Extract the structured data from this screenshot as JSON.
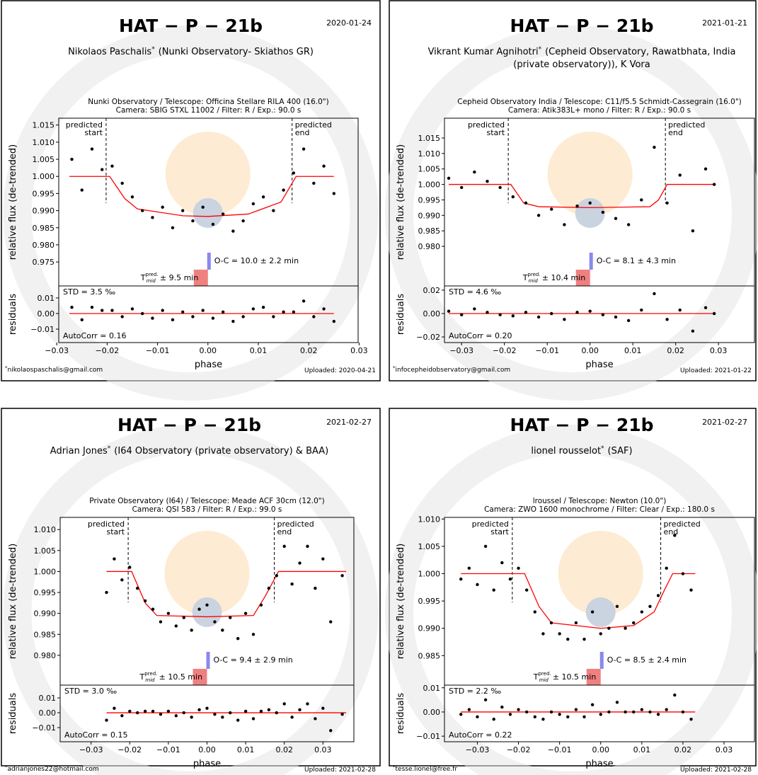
{
  "chart_data": [
    {
      "type": "scatter",
      "title": "HAT − P − 21b",
      "date": "2020-01-24",
      "observer": "Nikolaos Paschalis",
      "footnote_mark": "*",
      "affiliation": [
        "(Nunki Observatory- Skiathos GR)"
      ],
      "setup": [
        "Nunki Observatory / Telescope: Officina Stellare RILA 400 (16.0\")",
        "Camera: SBIG STXL 11002 / Filter: R / Exp.: 90.0 s"
      ],
      "ylabel": "relative flux (de-trended)",
      "residual_ylabel": "residuals",
      "xlabel": "phase",
      "x": [
        -0.027,
        -0.025,
        -0.023,
        -0.021,
        -0.019,
        -0.017,
        -0.015,
        -0.013,
        -0.011,
        -0.009,
        -0.007,
        -0.005,
        -0.003,
        -0.001,
        0.001,
        0.003,
        0.005,
        0.007,
        0.009,
        0.011,
        0.013,
        0.015,
        0.017,
        0.019,
        0.021,
        0.023,
        0.025
      ],
      "values": [
        1.005,
        0.996,
        1.008,
        1.002,
        1.003,
        0.998,
        0.994,
        0.99,
        0.988,
        0.991,
        0.985,
        0.99,
        0.987,
        0.991,
        0.986,
        0.989,
        0.984,
        0.987,
        0.992,
        0.994,
        0.99,
        0.996,
        1.001,
        1.008,
        0.998,
        1.003,
        0.995
      ],
      "residuals": [
        0.004,
        -0.004,
        0.004,
        0.002,
        0.002,
        -0.002,
        0.003,
        0.0,
        -0.003,
        0.002,
        -0.004,
        0.001,
        -0.002,
        0.002,
        -0.003,
        0.001,
        -0.005,
        -0.002,
        0.003,
        0.004,
        -0.002,
        0.001,
        0.001,
        0.008,
        -0.002,
        0.003,
        -0.005
      ],
      "color": "#000000",
      "model_x": [
        -0.0275,
        -0.0195,
        -0.0165,
        -0.014,
        -0.005,
        0.0,
        0.008,
        0.0145,
        0.0175,
        0.025
      ],
      "model_y": [
        1.0,
        1.0,
        0.9935,
        0.9905,
        0.9885,
        0.9883,
        0.989,
        0.9925,
        1.0,
        1.0
      ],
      "model_color": "#ff0000",
      "predicted_start": -0.0202,
      "predicted_end": 0.0167,
      "predicted_start_label": [
        "predicted",
        "start"
      ],
      "predicted_end_label": [
        "predicted",
        "end"
      ],
      "oc_label": "O-C = 10.0 ± 2.2 min",
      "tmid_label": [
        "T",
        "pred.",
        "mid",
        "± 9.5 min"
      ],
      "std_label": "STD = 3.5 ‰",
      "autocorr_label": "AutoCorr = 0.16",
      "email": "nikolaospaschalis@gmail.com",
      "uploaded": "Uploaded: 2020-04-21",
      "xlim": [
        -0.0296,
        0.0298
      ],
      "ylim": [
        0.968,
        1.017
      ],
      "residual_ylim": [
        -0.0186,
        0.0177
      ],
      "xticks": [
        {
          "value": -0.03,
          "label": "−0.03"
        },
        {
          "value": -0.02,
          "label": "−0.02"
        },
        {
          "value": -0.01,
          "label": "−0.01"
        },
        {
          "value": 0,
          "label": "0.00"
        },
        0.01,
        0.02,
        0.03
      ],
      "yticks": [
        0.975,
        {
          "value": 0.98,
          "label": "0.980"
        },
        0.985,
        {
          "value": 0.99,
          "label": "0.990"
        },
        0.995,
        {
          "value": 1,
          "label": "1.000"
        },
        1.005,
        {
          "value": 1.01,
          "label": "1.010"
        },
        1.015
      ],
      "residual_yticks": [
        {
          "value": -0.01,
          "label": "−0.01"
        },
        {
          "value": 0,
          "label": "0.00"
        },
        0.01
      ]
    },
    {
      "type": "scatter",
      "title": "HAT − P − 21b",
      "date": "2021-01-21",
      "observer": "Vikrant Kumar Agnihotri",
      "footnote_mark": "*",
      "affiliation": [
        "(Cepheid Observatory, Rawatbhata, India",
        "(private observatory)), K Vora"
      ],
      "setup": [
        "Cepheid Observatory India / Telescope: C11/f5.5 Schmidt-Cassegrain (16.0\")",
        "Camera: Atik383L+ mono / Filter: R / Exp.: 90.0 s"
      ],
      "ylabel": "relative flux (de-trended)",
      "residual_ylabel": "residuals",
      "xlabel": "phase",
      "x": [
        -0.033,
        -0.03,
        -0.027,
        -0.024,
        -0.021,
        -0.018,
        -0.015,
        -0.012,
        -0.009,
        -0.006,
        -0.003,
        0.0,
        0.003,
        0.006,
        0.009,
        0.012,
        0.015,
        0.018,
        0.021,
        0.024,
        0.027,
        0.029
      ],
      "values": [
        1.002,
        0.999,
        1.004,
        1.001,
        0.999,
        0.996,
        0.994,
        0.99,
        0.992,
        0.987,
        0.993,
        0.994,
        0.991,
        0.989,
        0.987,
        0.995,
        1.012,
        0.994,
        1.003,
        0.985,
        1.005,
        1.0
      ],
      "residuals": [
        0.002,
        -0.001,
        0.004,
        0.001,
        -0.001,
        -0.002,
        0.001,
        -0.003,
        0.0,
        -0.005,
        0.001,
        0.002,
        -0.001,
        -0.003,
        -0.006,
        0.003,
        0.017,
        -0.005,
        0.003,
        -0.015,
        0.005,
        0.0
      ],
      "color": "#000000",
      "model_x": [
        -0.033,
        -0.0185,
        -0.0155,
        -0.012,
        0.0,
        0.014,
        0.016,
        0.018,
        0.029
      ],
      "model_y": [
        1.0,
        1.0,
        0.994,
        0.9928,
        0.9925,
        0.9928,
        0.995,
        1.0,
        1.0
      ],
      "model_color": "#ff0000",
      "predicted_start": -0.0191,
      "predicted_end": 0.0176,
      "predicted_start_label": [
        "predicted",
        "start"
      ],
      "predicted_end_label": [
        "predicted",
        "end"
      ],
      "oc_label": "O-C = 8.1 ± 4.3 min",
      "tmid_label": [
        "T",
        "pred.",
        "mid",
        "± 10.4 min"
      ],
      "std_label": "STD = 4.6 ‰",
      "autocorr_label": "AutoCorr = 0.20",
      "email": "infocepheidobservatory@gmail.com",
      "uploaded": "Uploaded: 2021-01-22",
      "xlim": [
        -0.034,
        0.0384
      ],
      "ylim": [
        0.9672,
        1.0214
      ],
      "residual_ylim": [
        -0.0248,
        0.0236
      ],
      "xticks": [
        {
          "value": -0.03,
          "label": "−0.03"
        },
        {
          "value": -0.02,
          "label": "−0.02"
        },
        {
          "value": -0.01,
          "label": "−0.01"
        },
        {
          "value": 0,
          "label": "0.00"
        },
        0.01,
        0.02,
        0.03
      ],
      "yticks": [
        {
          "value": 0.98,
          "label": "0.980"
        },
        0.985,
        {
          "value": 0.99,
          "label": "0.990"
        },
        0.995,
        {
          "value": 1,
          "label": "1.000"
        },
        1.005,
        {
          "value": 1.01,
          "label": "1.010"
        },
        1.015
      ],
      "residual_yticks": [
        {
          "value": -0.02,
          "label": "−0.02"
        },
        {
          "value": 0,
          "label": "0.00"
        },
        0.02
      ]
    },
    {
      "type": "scatter",
      "title": "HAT − P − 21b",
      "date": "2021-02-27",
      "observer": "Adrian Jones",
      "footnote_mark": "*",
      "affiliation": [
        "(I64 Observatory (private observatory) & BAA)"
      ],
      "setup": [
        "Private Observatory (I64) / Telescope: Meade ACF 30cm (12.0\")",
        "Camera: QSI 583 / Filter: R / Exp.: 99.0 s"
      ],
      "ylabel": "relative flux (de-trended)",
      "residual_ylabel": "residuals",
      "xlabel": "phase",
      "x": [
        -0.026,
        -0.024,
        -0.022,
        -0.02,
        -0.018,
        -0.016,
        -0.014,
        -0.012,
        -0.01,
        -0.008,
        -0.006,
        -0.004,
        -0.002,
        0.0,
        0.002,
        0.004,
        0.006,
        0.008,
        0.01,
        0.012,
        0.014,
        0.016,
        0.018,
        0.02,
        0.022,
        0.024,
        0.026,
        0.028,
        0.03,
        0.032,
        0.035
      ],
      "values": [
        0.995,
        1.003,
        0.998,
        1.001,
        0.996,
        0.993,
        0.991,
        0.988,
        0.99,
        0.987,
        0.989,
        0.986,
        0.991,
        0.992,
        0.988,
        0.986,
        0.989,
        0.984,
        0.99,
        0.985,
        0.992,
        0.996,
        0.999,
        1.006,
        0.997,
        1.002,
        1.006,
        0.996,
        1.003,
        0.988,
        0.999
      ],
      "residuals": [
        -0.005,
        0.003,
        -0.002,
        0.001,
        0.0,
        0.001,
        0.001,
        -0.001,
        0.001,
        -0.002,
        0.0,
        -0.003,
        0.002,
        0.003,
        -0.001,
        -0.003,
        0.0,
        -0.005,
        0.001,
        -0.004,
        0.001,
        0.002,
        0.0,
        0.006,
        -0.003,
        0.002,
        0.006,
        -0.004,
        0.003,
        -0.012,
        -0.001
      ],
      "color": "#000000",
      "model_x": [
        -0.026,
        -0.0195,
        -0.016,
        -0.013,
        0.0,
        0.012,
        0.015,
        0.0185,
        0.036
      ],
      "model_y": [
        1.0,
        1.0,
        0.9925,
        0.9895,
        0.9892,
        0.9895,
        0.994,
        1.0,
        1.0
      ],
      "model_color": "#ff0000",
      "predicted_start": -0.0204,
      "predicted_end": 0.0174,
      "predicted_start_label": [
        "predicted",
        "start"
      ],
      "predicted_end_label": [
        "predicted",
        "end"
      ],
      "oc_label": "O-C = 9.4 ± 2.9 min",
      "tmid_label": [
        "T",
        "pred.",
        "mid",
        "± 10.5 min"
      ],
      "std_label": "STD = 3.0 ‰",
      "autocorr_label": "AutoCorr = 0.15",
      "email": "adrianjones22@hotmail.com",
      "uploaded": "Uploaded: 2021-02-28",
      "xlim": [
        -0.038,
        0.038
      ],
      "ylim": [
        0.9729,
        1.0129
      ],
      "residual_ylim": [
        -0.0195,
        0.0186
      ],
      "xticks": [
        {
          "value": -0.03,
          "label": "−0.03"
        },
        {
          "value": -0.02,
          "label": "−0.02"
        },
        {
          "value": -0.01,
          "label": "−0.01"
        },
        {
          "value": 0,
          "label": "0.00"
        },
        0.01,
        0.02,
        0.03
      ],
      "yticks": [
        {
          "value": 0.98,
          "label": "0.980"
        },
        0.985,
        {
          "value": 0.99,
          "label": "0.990"
        },
        0.995,
        {
          "value": 1,
          "label": "1.000"
        },
        1.005,
        {
          "value": 1.01,
          "label": "1.010"
        }
      ],
      "residual_yticks": [
        {
          "value": -0.01,
          "label": "−0.01"
        },
        {
          "value": 0,
          "label": "0.00"
        },
        0.01
      ]
    },
    {
      "type": "scatter",
      "title": "HAT − P − 21b",
      "date": "2021-02-27",
      "observer": "lionel rousselot",
      "footnote_mark": "*",
      "affiliation": [
        "(SAF)"
      ],
      "setup": [
        "lroussel / Telescope: Newton (10.0\")",
        "Camera: ZWO 1600 monochrome / Filter: Clear / Exp.: 180.0 s"
      ],
      "ylabel": "relative flux (de-trended)",
      "residual_ylabel": "residuals",
      "xlabel": "phase",
      "x": [
        -0.034,
        -0.032,
        -0.03,
        -0.028,
        -0.026,
        -0.024,
        -0.022,
        -0.02,
        -0.018,
        -0.016,
        -0.014,
        -0.012,
        -0.01,
        -0.008,
        -0.006,
        -0.004,
        -0.002,
        0.0,
        0.002,
        0.004,
        0.006,
        0.008,
        0.01,
        0.012,
        0.014,
        0.016,
        0.018,
        0.02,
        0.022
      ],
      "values": [
        0.999,
        1.001,
        0.998,
        1.005,
        0.997,
        1.002,
        0.999,
        1.001,
        0.997,
        0.993,
        0.989,
        0.991,
        0.989,
        0.988,
        0.991,
        0.988,
        0.993,
        0.989,
        0.99,
        0.994,
        0.99,
        0.991,
        0.993,
        0.994,
        0.996,
        1.001,
        1.007,
        1.0,
        0.997
      ],
      "residuals": [
        -0.001,
        0.001,
        -0.002,
        0.005,
        -0.003,
        0.002,
        -0.001,
        0.001,
        0.0,
        -0.002,
        -0.003,
        0.0,
        -0.001,
        -0.002,
        0.001,
        -0.002,
        0.003,
        -0.001,
        0.0,
        0.004,
        0.0,
        0.0,
        0.001,
        0.0,
        -0.001,
        0.001,
        0.007,
        0.0,
        -0.003
      ],
      "color": "#000000",
      "model_x": [
        -0.034,
        -0.0185,
        -0.015,
        -0.012,
        0.0,
        0.008,
        0.013,
        0.0155,
        0.0175,
        0.023
      ],
      "model_y": [
        1.0,
        1.0,
        0.994,
        0.991,
        0.99,
        0.9905,
        0.993,
        0.997,
        1.0,
        1.0
      ],
      "model_color": "#ff0000",
      "predicted_start": -0.0215,
      "predicted_end": 0.0146,
      "predicted_start_label": [
        "predicted",
        "start"
      ],
      "predicted_end_label": [
        "predicted",
        "end"
      ],
      "oc_label": "O-C = 8.5 ± 2.4 min",
      "tmid_label": [
        "T",
        "pred.",
        "mid",
        "± 10.5 min"
      ],
      "std_label": "STD = 2.2 ‰",
      "autocorr_label": "AutoCorr = 0.22",
      "email": "tesse.lionel@free.fr",
      "uploaded": "Uploaded: 2021-02-28",
      "xlim": [
        -0.038,
        0.0374
      ],
      "ylim": [
        0.9796,
        1.0103
      ],
      "residual_ylim": [
        -0.0123,
        0.0111
      ],
      "xticks": [
        {
          "value": -0.03,
          "label": "−0.03"
        },
        {
          "value": -0.02,
          "label": "−0.02"
        },
        {
          "value": -0.01,
          "label": "−0.01"
        },
        {
          "value": 0,
          "label": "0.00"
        },
        0.01,
        0.02,
        0.03
      ],
      "yticks": [
        0.985,
        {
          "value": 0.99,
          "label": "0.990"
        },
        0.995,
        {
          "value": 1,
          "label": "1.000"
        },
        1.005,
        {
          "value": 1.01,
          "label": "1.010"
        }
      ],
      "residual_yticks": [
        {
          "value": -0.01,
          "label": "−0.01"
        },
        {
          "value": 0,
          "label": "0.00"
        },
        0.01
      ]
    }
  ]
}
